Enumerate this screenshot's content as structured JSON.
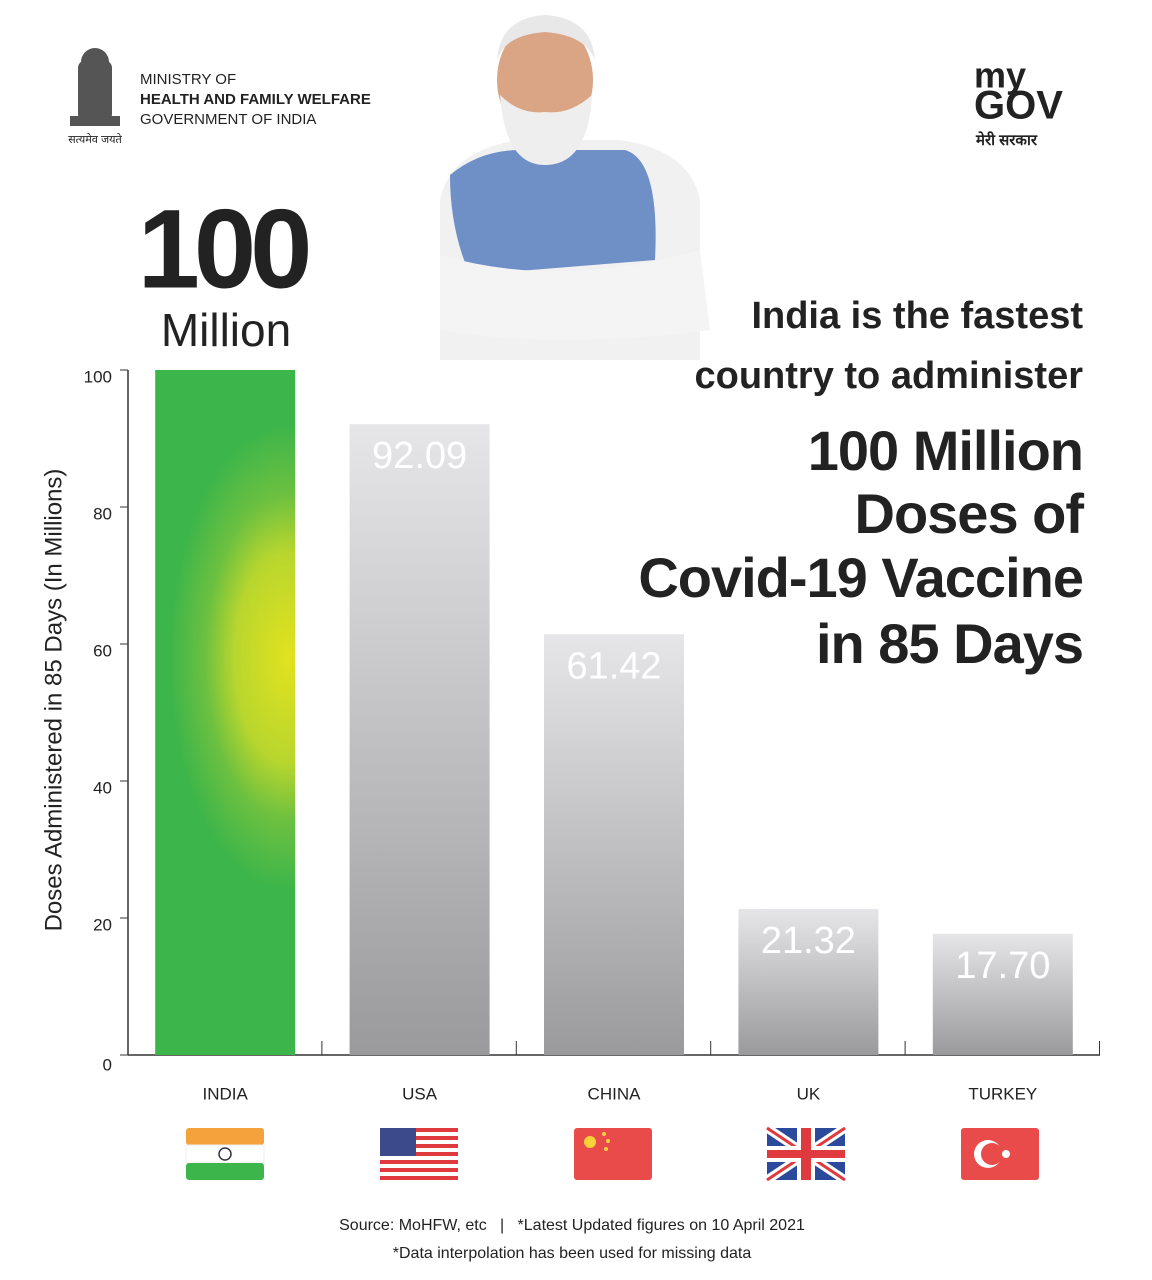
{
  "header": {
    "ministry": [
      "MINISTRY OF",
      "HEALTH AND FAMILY WELFARE",
      "GOVERNMENT OF INDIA"
    ],
    "emblem_motto": "सत्यमेव जयते",
    "logo": [
      "my",
      "GOV"
    ],
    "logo_tagline": "मेरी सरकार"
  },
  "highlight": {
    "number": "100",
    "unit": "Million"
  },
  "headline": [
    "India is the fastest",
    "country to administer"
  ],
  "headline_green": [
    "100 Million",
    "Doses of",
    "Covid-19 Vaccine",
    "in 85 Days"
  ],
  "footer": [
    "Source: MoHFW, etc   |   *Latest Updated figures on 10 April 2021",
    "*Data interpolation has been used for missing data"
  ],
  "chart_data": {
    "type": "bar",
    "y_label": "Doses Administered in 85 Days (In Millions)",
    "categories": [
      "INDIA",
      "USA",
      "CHINA",
      "UK",
      "TURKEY"
    ],
    "values": [
      100,
      92.09,
      61.42,
      21.32,
      17.7
    ],
    "value_labels": [
      null,
      "92.09",
      "61.42",
      "21.32",
      "17.70"
    ],
    "colors": [
      "#3cb54a",
      "#b8b8ba",
      "#b8b8ba",
      "#b8b8ba",
      "#b8b8ba"
    ],
    "ylim": [
      0,
      100
    ],
    "yticks": [
      0,
      20,
      40,
      60,
      80,
      100
    ]
  }
}
